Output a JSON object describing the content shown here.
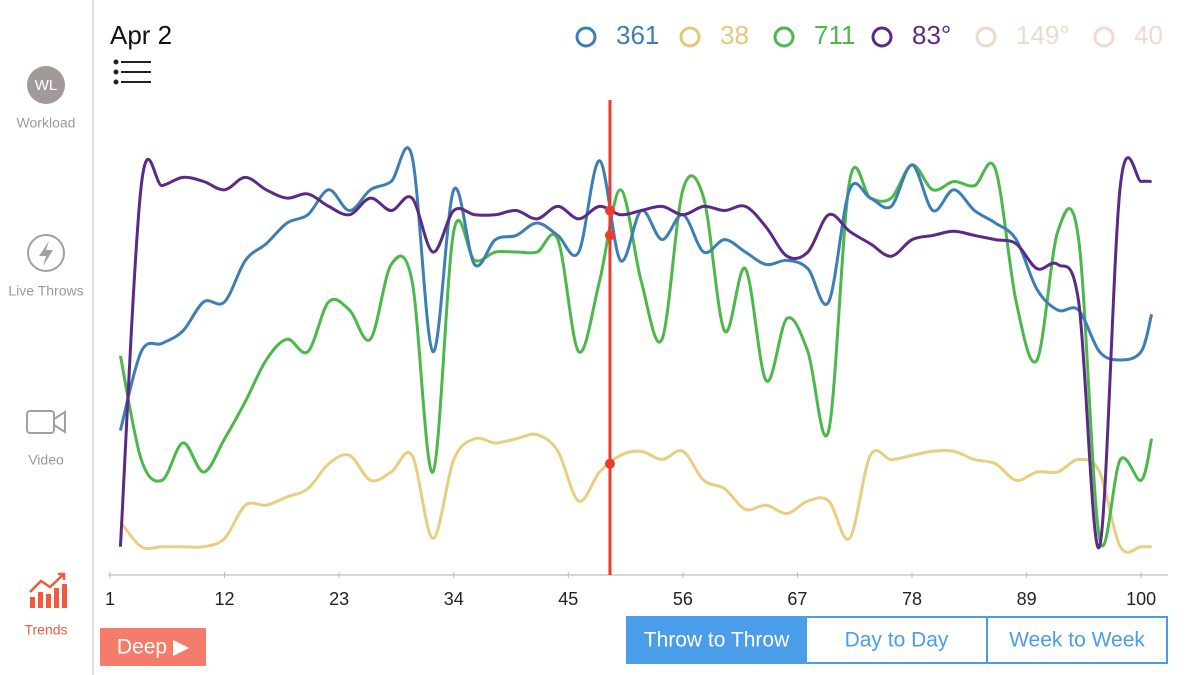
{
  "sidebar": [
    {
      "icon_text": "WL",
      "label": "Workload",
      "active": false
    },
    {
      "label": "Live Throws",
      "active": false
    },
    {
      "label": "Video",
      "active": false
    },
    {
      "label": "Trends",
      "active": true
    }
  ],
  "header": {
    "date": "Apr 2"
  },
  "metrics": [
    {
      "value": "361",
      "color": "#3d7fb5"
    },
    {
      "value": "38",
      "color": "#e3c77a"
    },
    {
      "value": "711",
      "color": "#4cb84a"
    },
    {
      "value": "83°",
      "color": "#5b2a86"
    },
    {
      "value": "149°",
      "color": "#e8dccb"
    },
    {
      "value": "40",
      "color": "#f2d9d3"
    }
  ],
  "chart_data": {
    "type": "line",
    "x": [
      2,
      4,
      6,
      8,
      10,
      12,
      14,
      16,
      18,
      20,
      22,
      24,
      26,
      28,
      30,
      32,
      34,
      36,
      38,
      40,
      42,
      44,
      46,
      48,
      50,
      52,
      54,
      56,
      58,
      60,
      62,
      64,
      66,
      68,
      70,
      72,
      74,
      76,
      78,
      80,
      82,
      84,
      86,
      88,
      90,
      92,
      94,
      96,
      98,
      100,
      101
    ],
    "xlim": [
      1,
      102
    ],
    "ylim": [
      0,
      100
    ],
    "xticks": [
      1,
      12,
      23,
      34,
      45,
      56,
      67,
      78,
      89,
      100
    ],
    "cursor_x": 49,
    "cursor_color": "#f03a2a",
    "series": [
      {
        "color": "#e8cf80",
        "cursor_dot": true,
        "values": [
          8,
          2,
          2,
          2,
          2,
          4,
          12,
          12,
          14,
          16,
          22,
          24,
          18,
          20,
          24,
          4,
          23,
          28,
          27,
          28,
          29,
          25,
          13,
          20,
          24,
          25,
          23,
          25,
          18,
          16,
          11,
          12,
          10,
          13,
          13,
          4,
          24,
          23,
          24,
          25,
          25,
          23,
          22,
          18,
          20,
          20,
          23,
          20,
          2,
          2,
          2
        ]
      },
      {
        "color": "#4cb84a",
        "cursor_dot": true,
        "values": [
          48,
          23,
          18,
          27,
          20,
          28,
          37,
          47,
          52,
          49,
          61,
          59,
          52,
          70,
          66,
          20,
          78,
          71,
          73,
          73,
          73,
          76,
          49,
          66,
          88,
          66,
          52,
          88,
          86,
          54,
          69,
          42,
          57,
          49,
          30,
          90,
          86,
          86,
          94,
          88,
          90,
          89,
          93,
          61,
          47,
          78,
          76,
          4,
          23,
          18,
          28
        ]
      },
      {
        "color": "#3d7fb5",
        "cursor_dot": false,
        "values": [
          30,
          49,
          51,
          54,
          61,
          61,
          71,
          75,
          80,
          82,
          88,
          83,
          88,
          90,
          96,
          49,
          88,
          70,
          76,
          77,
          80,
          77,
          73,
          95,
          71,
          83,
          76,
          82,
          73,
          76,
          73,
          70,
          71,
          69,
          61,
          88,
          86,
          84,
          94,
          83,
          88,
          83,
          80,
          76,
          64,
          59,
          59,
          49,
          47,
          49,
          58
        ]
      },
      {
        "color": "#5b2a86",
        "cursor_dot": true,
        "values": [
          2,
          89,
          89,
          91,
          90,
          88,
          91,
          88,
          86,
          87,
          84,
          82,
          86,
          83,
          86,
          73,
          83,
          82,
          82,
          83,
          81,
          84,
          81,
          84,
          82,
          83,
          84,
          82,
          84,
          83,
          84,
          79,
          72,
          73,
          82,
          78,
          75,
          72,
          76,
          77,
          78,
          77,
          76,
          75,
          69,
          70,
          61,
          2,
          89,
          90,
          90
        ]
      }
    ]
  },
  "deep_button": {
    "label": "Deep ▶"
  },
  "range_tabs": [
    {
      "label": "Throw to Throw",
      "active": true
    },
    {
      "label": "Day to Day",
      "active": false
    },
    {
      "label": "Week to Week",
      "active": false
    }
  ]
}
